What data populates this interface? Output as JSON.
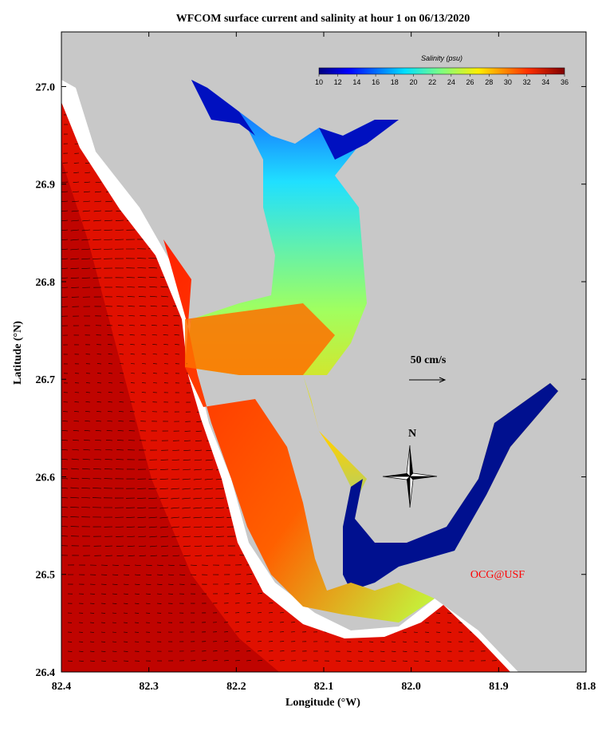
{
  "map": {
    "title": "WFCOM surface current and salinity at hour 1 on 06/13/2020",
    "xlabel": "Longitude (°W)",
    "ylabel": "Latitude (°N)",
    "xlim": [
      82.4,
      81.8
    ],
    "xticks": [
      82.4,
      82.3,
      82.2,
      82.1,
      {
        "value": 82,
        "label": "82.0"
      },
      81.9,
      81.8
    ],
    "ylim": [
      26.4,
      27.056
    ],
    "yticks": [
      26.4,
      26.5,
      26.6,
      26.7,
      26.8,
      26.9,
      {
        "value": 27,
        "label": "27.0"
      }
    ],
    "colorbar": {
      "label": "Salinity (psu)",
      "lim": [
        10,
        36
      ],
      "ticks": [
        10,
        12,
        14,
        16,
        18,
        20,
        22,
        24,
        26,
        28,
        30,
        32,
        34,
        36
      ]
    },
    "scale_label": "50 cm/s",
    "north_label": "N",
    "credit": "OCG@USF"
  }
}
